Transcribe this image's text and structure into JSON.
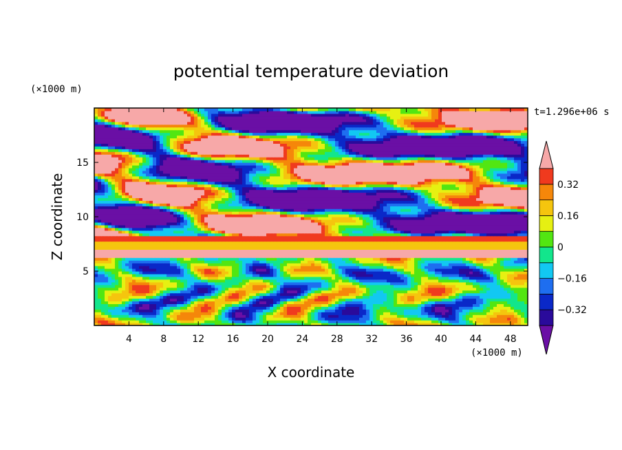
{
  "chart_data": {
    "type": "heatmap",
    "title": "potential temperature deviation",
    "xlabel": "X coordinate",
    "ylabel": "Z coordinate",
    "x_unit": "(×1000 m)",
    "y_unit": "(×1000 m)",
    "time_label": "t=1.296e+06 s",
    "xlim": [
      0,
      50
    ],
    "ylim": [
      0,
      20
    ],
    "x_ticks": [
      4,
      8,
      12,
      16,
      20,
      24,
      28,
      32,
      36,
      40,
      44,
      48
    ],
    "y_ticks": [
      5,
      10,
      15
    ],
    "colorbar": {
      "levels": [
        -0.4,
        -0.32,
        -0.24,
        -0.16,
        -0.08,
        0,
        0.08,
        0.16,
        0.24,
        0.32,
        0.4
      ],
      "tick_values": [
        -0.32,
        -0.16,
        0,
        0.16,
        0.32
      ],
      "tick_labels": [
        "−0.32",
        "−0.16",
        "0",
        "0.16",
        "0.32"
      ],
      "colors": [
        "#6a0fa5",
        "#2a0a9b",
        "#0a28c8",
        "#1e6ef0",
        "#12c8f2",
        "#12e68c",
        "#52e612",
        "#e6f012",
        "#f5c50e",
        "#f5870a",
        "#f03a1e",
        "#f7a8a8"
      ],
      "extend": "both"
    },
    "bands": [
      {
        "zmin": 6.4,
        "zmax": 6.9,
        "level": "high"
      },
      {
        "zmin": 6.9,
        "zmax": 7.3,
        "level": "orange"
      },
      {
        "zmin": 7.3,
        "zmax": 7.7,
        "level": "yellow"
      },
      {
        "zmin": 7.7,
        "zmax": 8.2,
        "level": "red"
      }
    ]
  }
}
